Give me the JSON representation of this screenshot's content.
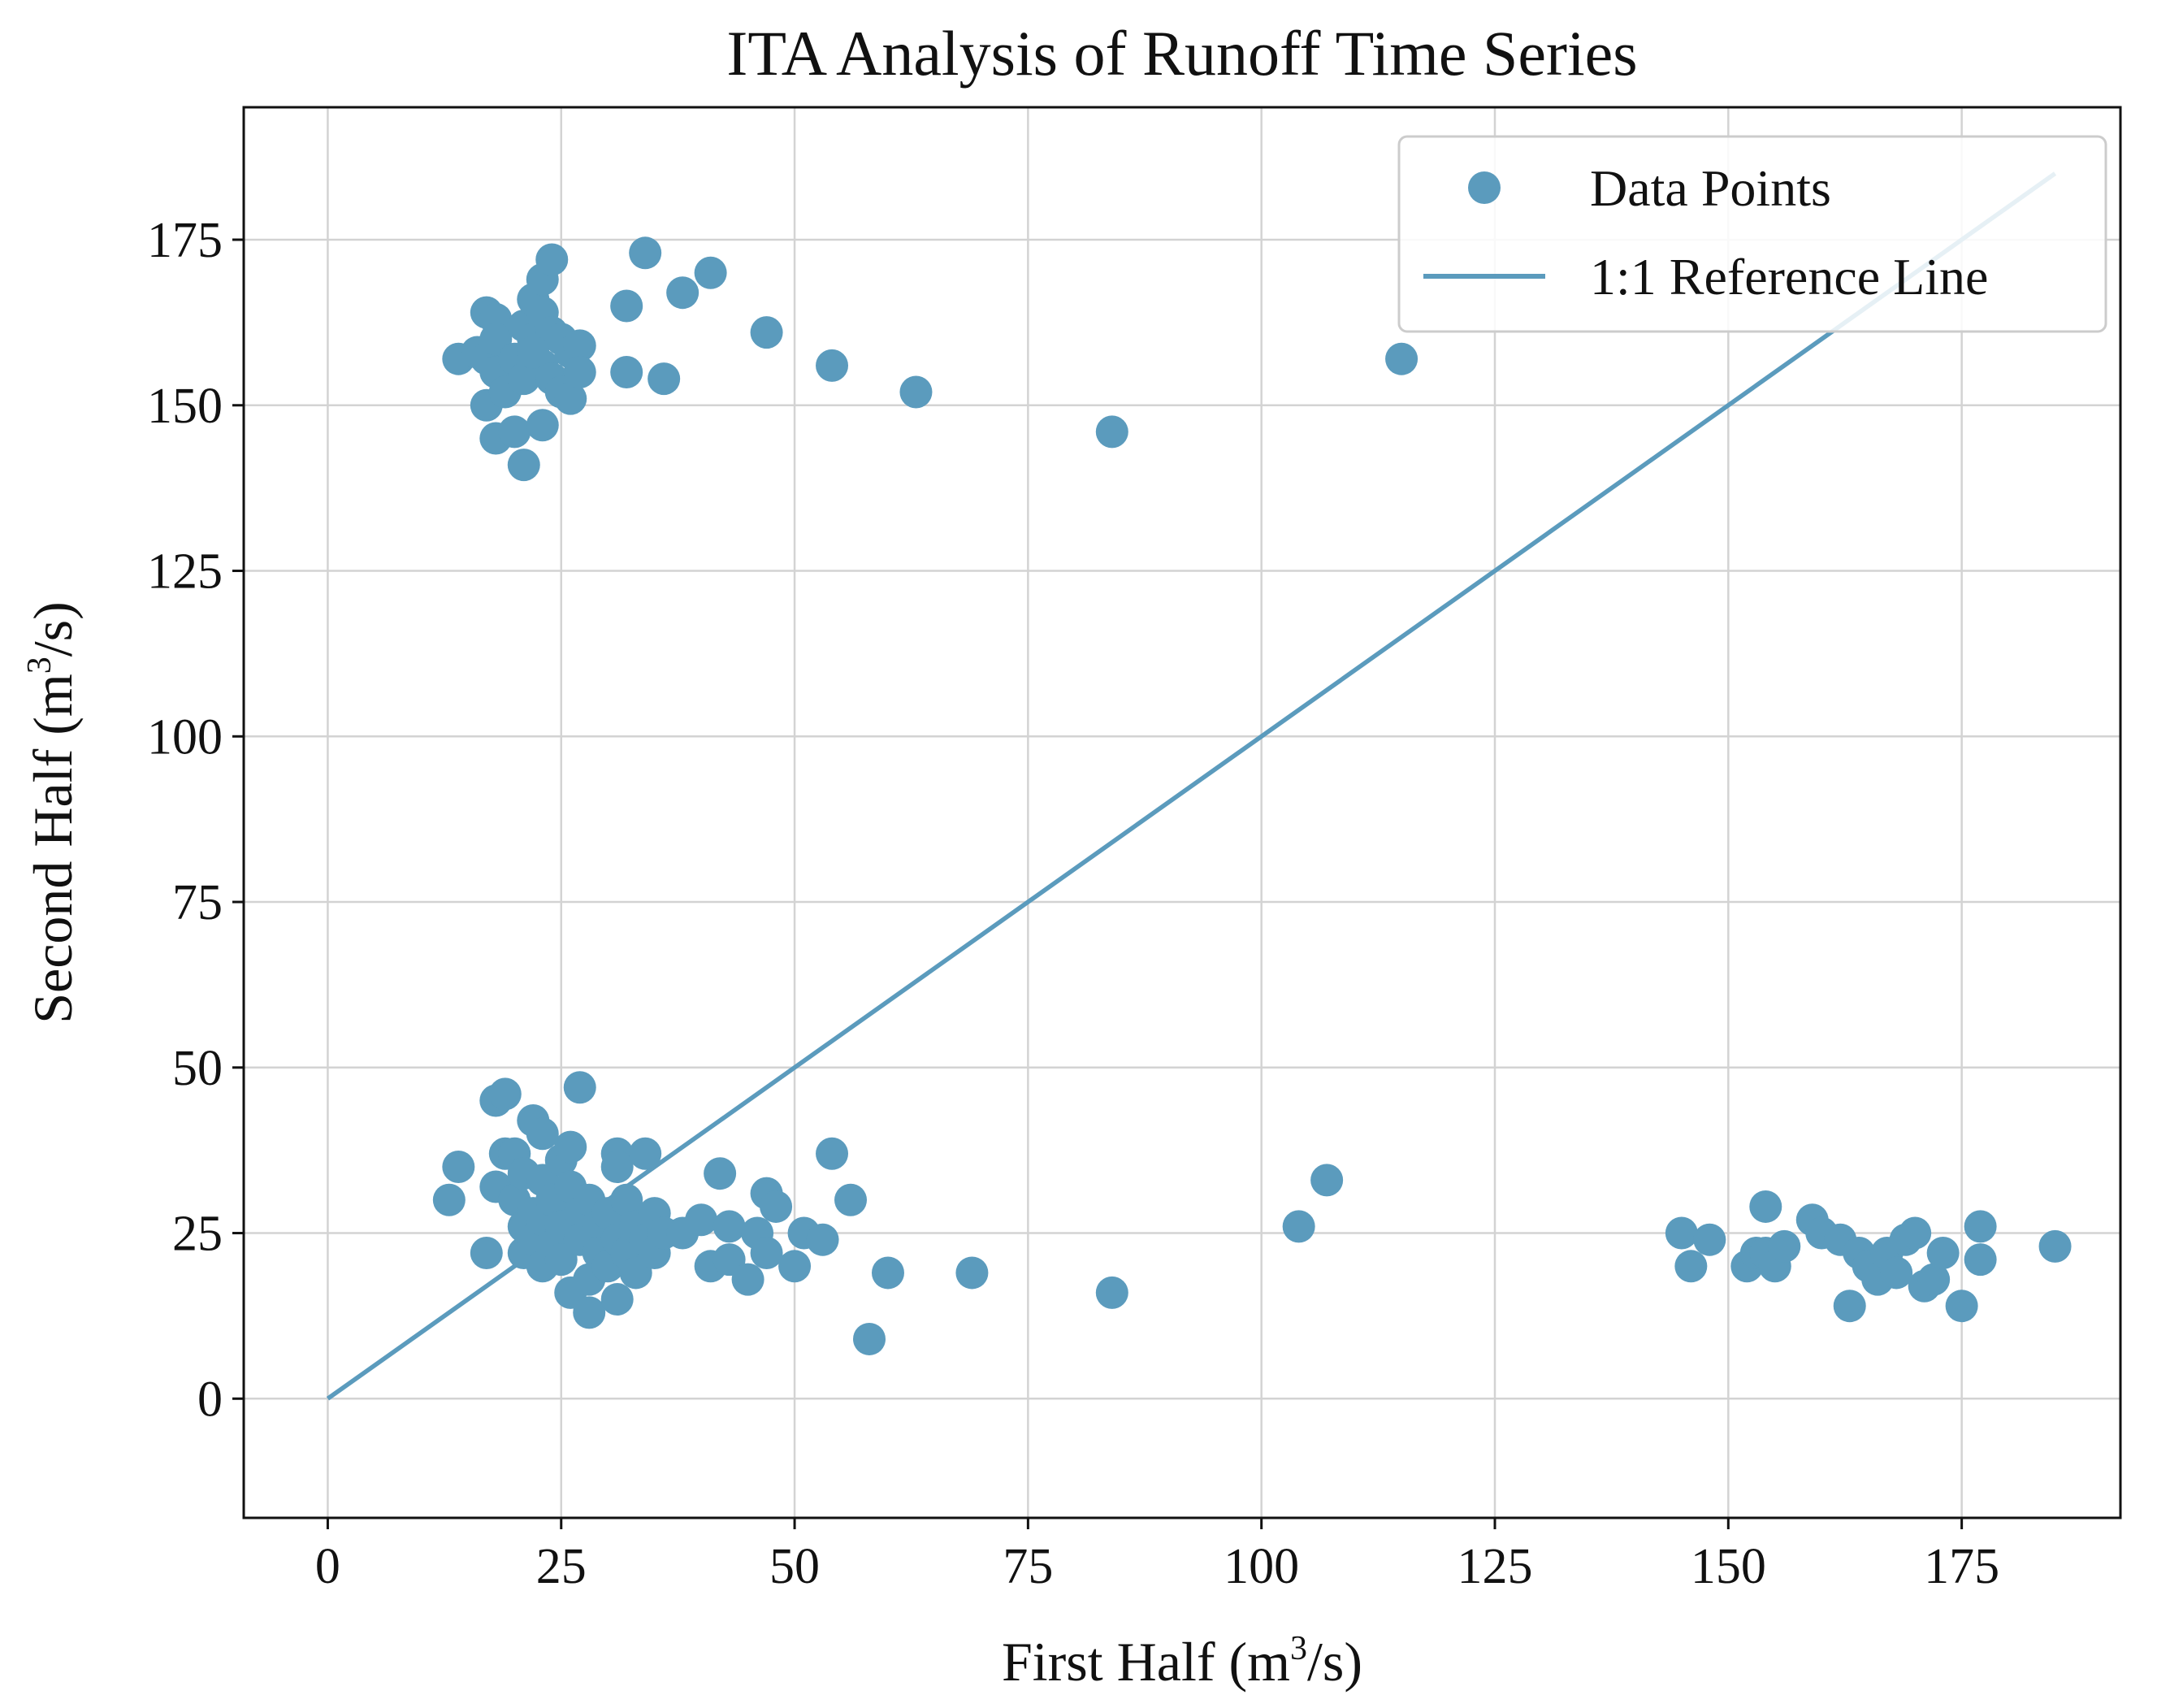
{
  "chart_data": {
    "type": "scatter",
    "title": "ITA Analysis of Runoff Time Series",
    "xlabel": {
      "prefix": "First Half (m",
      "sup": "3",
      "suffix": "/s)"
    },
    "ylabel": {
      "prefix": "Second Half (m",
      "sup": "3",
      "suffix": "/s)"
    },
    "xlim": [
      -9,
      192
    ],
    "ylim": [
      -18,
      195
    ],
    "xticks": [
      0,
      25,
      50,
      75,
      100,
      125,
      150,
      175
    ],
    "yticks": [
      0,
      25,
      50,
      75,
      100,
      125,
      150,
      175
    ],
    "grid": true,
    "legend_position": "top-right",
    "colors": {
      "points": "#5b9bbd",
      "line": "#5b9bbd",
      "grid": "#d3d3d3",
      "axes": "#111111"
    },
    "series": [
      {
        "name": "Data Points",
        "kind": "scatter",
        "points": [
          [
            14,
            157
          ],
          [
            16,
            158
          ],
          [
            17,
            164
          ],
          [
            18,
            163
          ],
          [
            17,
            157
          ],
          [
            18,
            160
          ],
          [
            18,
            155
          ],
          [
            17,
            150
          ],
          [
            19,
            152
          ],
          [
            18,
            145
          ],
          [
            20,
            146
          ],
          [
            21,
            141
          ],
          [
            21,
            162
          ],
          [
            22,
            166
          ],
          [
            22,
            160
          ],
          [
            20,
            157
          ],
          [
            21,
            154
          ],
          [
            23,
            169
          ],
          [
            24,
            172
          ],
          [
            23,
            164
          ],
          [
            24,
            161
          ],
          [
            25,
            160
          ],
          [
            26,
            158
          ],
          [
            27,
            159
          ],
          [
            23,
            156
          ],
          [
            24,
            154
          ],
          [
            25,
            152
          ],
          [
            26,
            151
          ],
          [
            23,
            147
          ],
          [
            27,
            155
          ],
          [
            22,
            158
          ],
          [
            32,
            165
          ],
          [
            34,
            173
          ],
          [
            32,
            155
          ],
          [
            36,
            154
          ],
          [
            38,
            167
          ],
          [
            41,
            170
          ],
          [
            47,
            161
          ],
          [
            54,
            156
          ],
          [
            63,
            152
          ],
          [
            84,
            146
          ],
          [
            115,
            157
          ],
          [
            13,
            30
          ],
          [
            14,
            35
          ],
          [
            17,
            22
          ],
          [
            18,
            32
          ],
          [
            18,
            45
          ],
          [
            19,
            46
          ],
          [
            19,
            37
          ],
          [
            20,
            37
          ],
          [
            20,
            30
          ],
          [
            21,
            34
          ],
          [
            21,
            26
          ],
          [
            21,
            22
          ],
          [
            22,
            42
          ],
          [
            22,
            28
          ],
          [
            22,
            24
          ],
          [
            23,
            40
          ],
          [
            23,
            33
          ],
          [
            23,
            27
          ],
          [
            23,
            20
          ],
          [
            24,
            30
          ],
          [
            24,
            23
          ],
          [
            25,
            36
          ],
          [
            25,
            26
          ],
          [
            25,
            21
          ],
          [
            26,
            38
          ],
          [
            26,
            32
          ],
          [
            26,
            16
          ],
          [
            27,
            47
          ],
          [
            27,
            28
          ],
          [
            27,
            24
          ],
          [
            28,
            30
          ],
          [
            28,
            18
          ],
          [
            28,
            13
          ],
          [
            29,
            26
          ],
          [
            29,
            22
          ],
          [
            30,
            20
          ],
          [
            30,
            28
          ],
          [
            31,
            37
          ],
          [
            31,
            35
          ],
          [
            31,
            24
          ],
          [
            31,
            15
          ],
          [
            32,
            30
          ],
          [
            32,
            22
          ],
          [
            33,
            26
          ],
          [
            33,
            19
          ],
          [
            34,
            37
          ],
          [
            34,
            24
          ],
          [
            35,
            28
          ],
          [
            35,
            22
          ],
          [
            36,
            25
          ],
          [
            38,
            25
          ],
          [
            40,
            27
          ],
          [
            41,
            20
          ],
          [
            42,
            34
          ],
          [
            43,
            26
          ],
          [
            43,
            21
          ],
          [
            45,
            18
          ],
          [
            46,
            25
          ],
          [
            47,
            31
          ],
          [
            47,
            22
          ],
          [
            48,
            29
          ],
          [
            50,
            20
          ],
          [
            51,
            25
          ],
          [
            53,
            24
          ],
          [
            54,
            37
          ],
          [
            56,
            30
          ],
          [
            58,
            9
          ],
          [
            60,
            19
          ],
          [
            69,
            19
          ],
          [
            84,
            16
          ],
          [
            104,
            26
          ],
          [
            107,
            33
          ],
          [
            145,
            25
          ],
          [
            146,
            20
          ],
          [
            148,
            24
          ],
          [
            152,
            20
          ],
          [
            153,
            22
          ],
          [
            154,
            29
          ],
          [
            154,
            22
          ],
          [
            155,
            20
          ],
          [
            156,
            23
          ],
          [
            159,
            27
          ],
          [
            160,
            25
          ],
          [
            162,
            24
          ],
          [
            163,
            14
          ],
          [
            164,
            22
          ],
          [
            165,
            20
          ],
          [
            166,
            18
          ],
          [
            167,
            22
          ],
          [
            168,
            19
          ],
          [
            169,
            24
          ],
          [
            170,
            25
          ],
          [
            171,
            17
          ],
          [
            172,
            18
          ],
          [
            173,
            22
          ],
          [
            175,
            14
          ],
          [
            177,
            26
          ],
          [
            177,
            21
          ],
          [
            185,
            23
          ]
        ]
      },
      {
        "name": "1:1 Reference Line",
        "kind": "line",
        "points": [
          [
            0,
            0
          ],
          [
            185,
            185
          ]
        ]
      }
    ]
  }
}
